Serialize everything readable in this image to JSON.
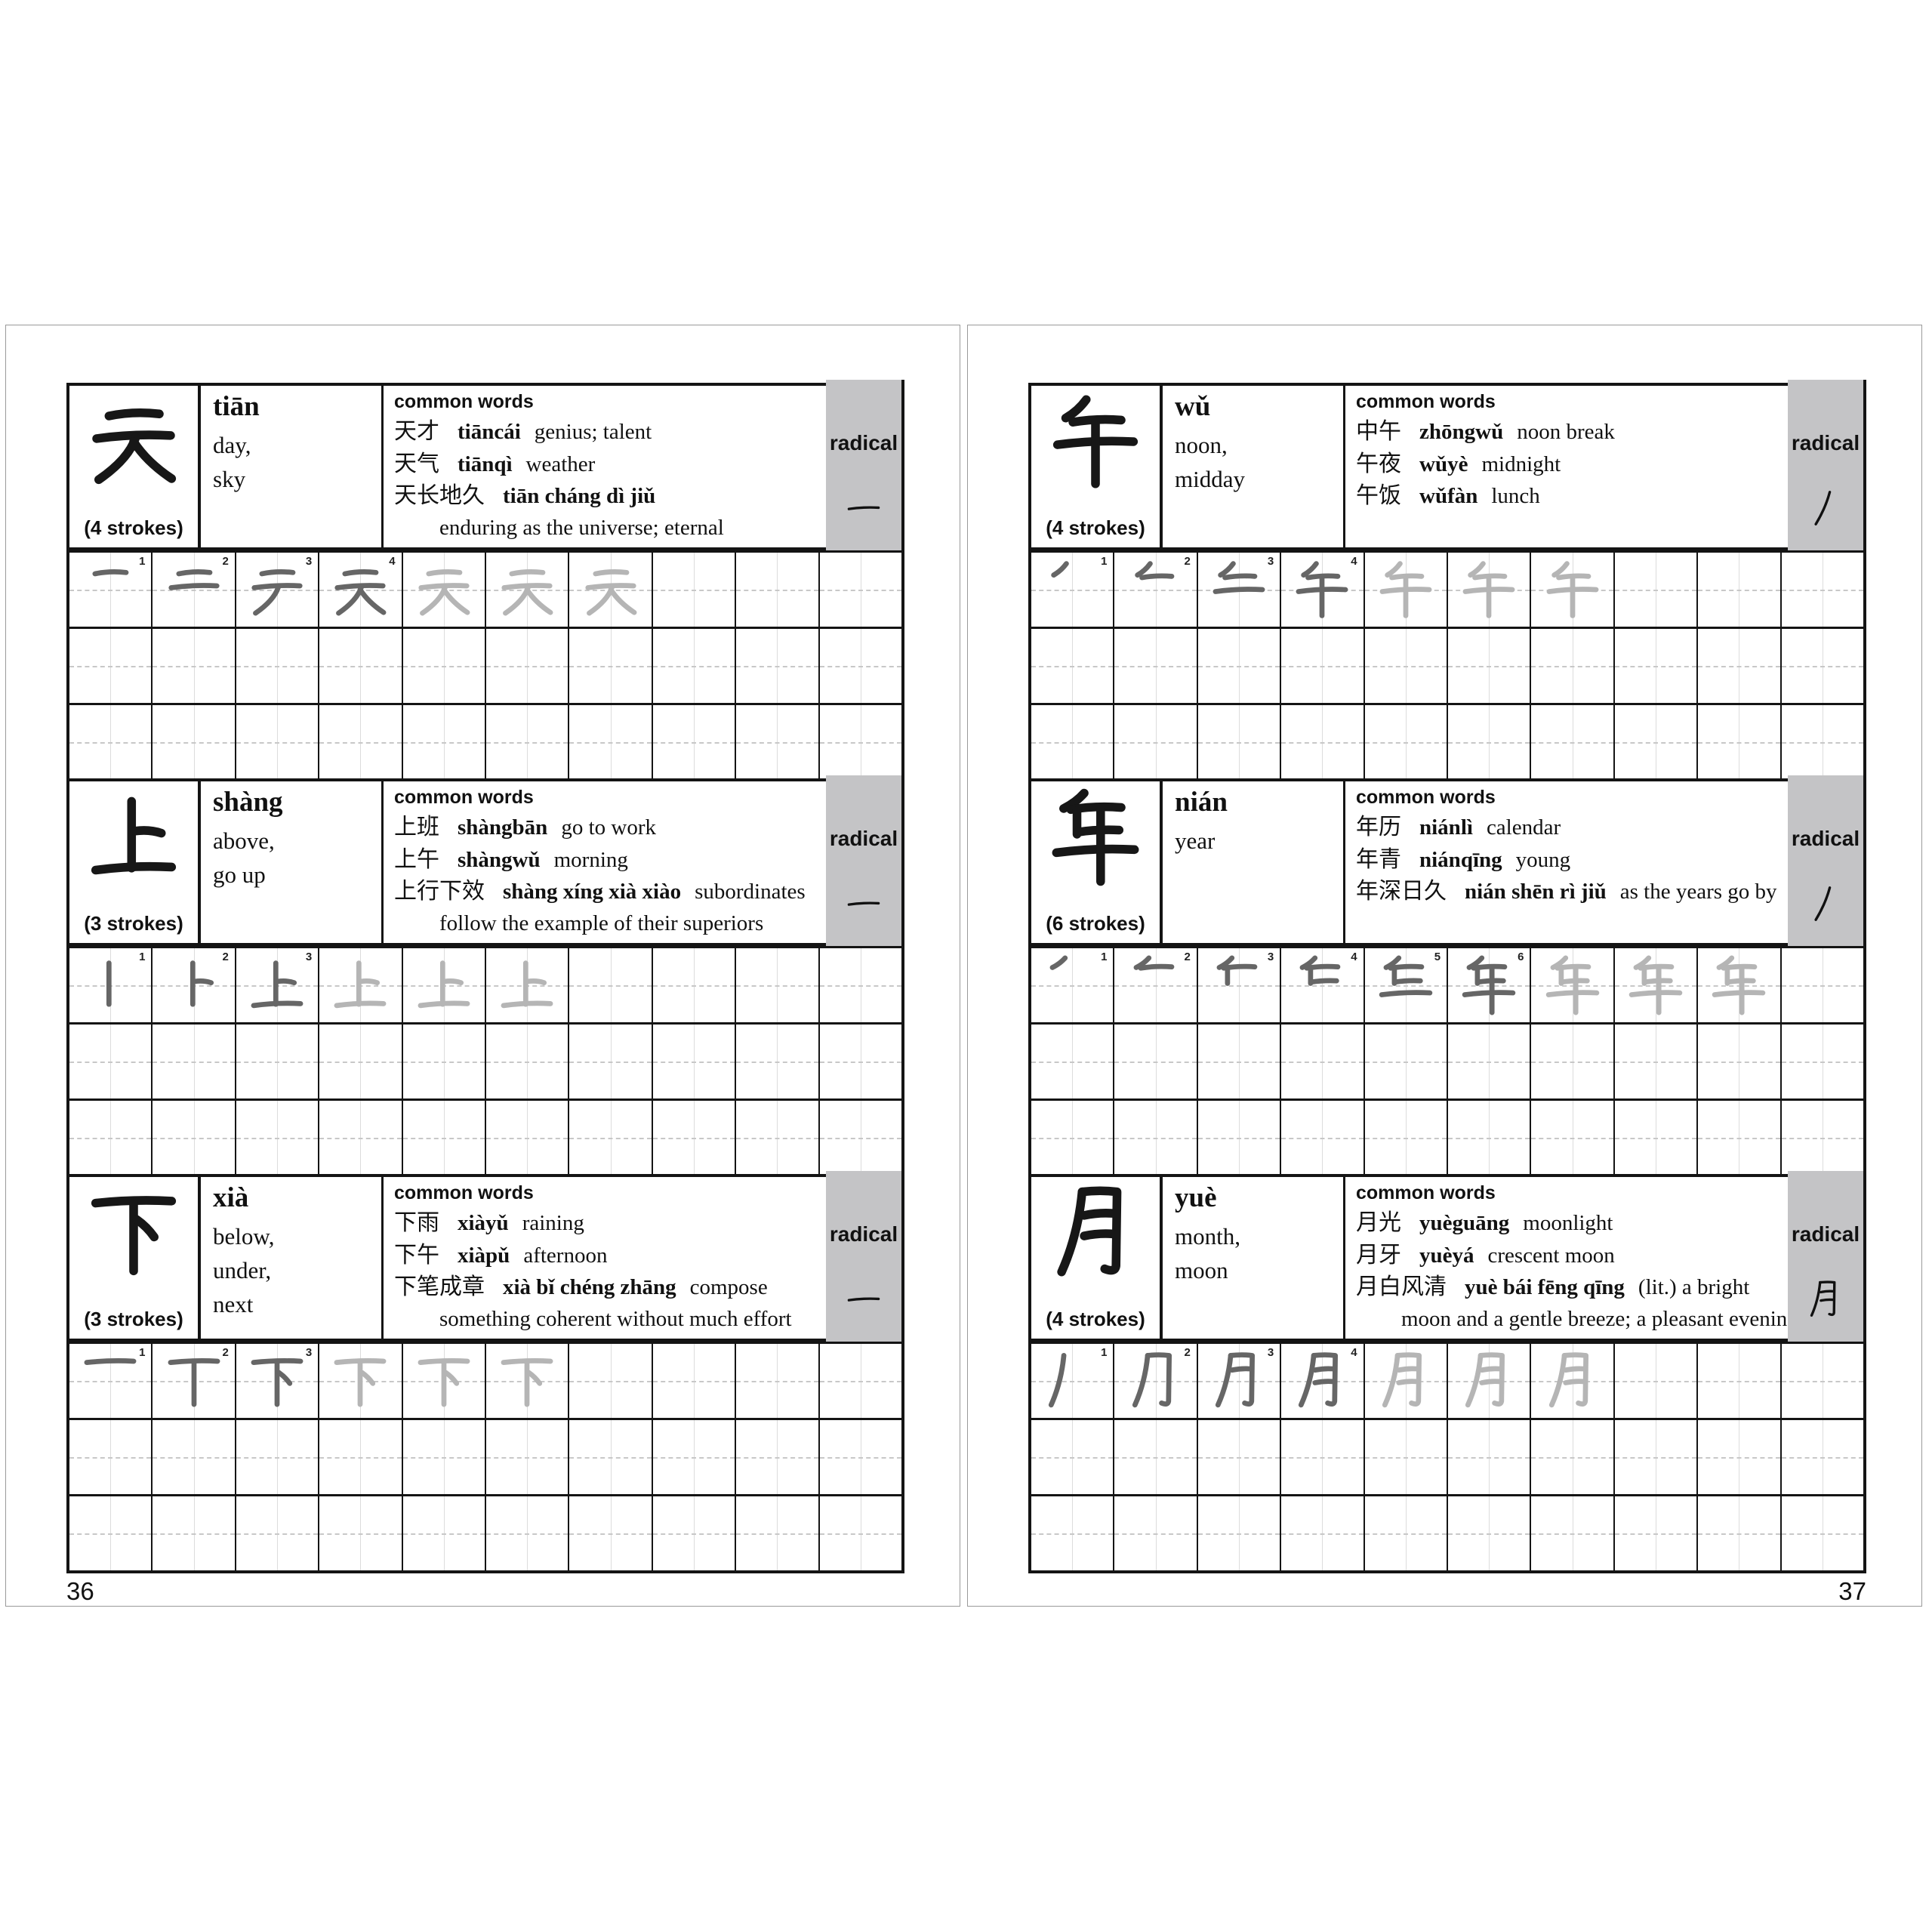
{
  "common_words_label": "common words",
  "radical_label": "radical",
  "pages": [
    {
      "page_number": "36",
      "blocks": [
        {
          "character": "天",
          "pinyin": "tiān",
          "meaning": "day,\nsky",
          "strokes_label": "(4 strokes)",
          "radical": "一",
          "words": [
            {
              "hanzi": "天才",
              "pinyin": "tiāncái",
              "gloss": "genius; talent"
            },
            {
              "hanzi": "天气",
              "pinyin": "tiānqì",
              "gloss": "weather"
            },
            {
              "hanzi": "天长地久",
              "pinyin": "tiān cháng dì jiǔ",
              "gloss": "",
              "cont": "enduring as the universe; eternal"
            }
          ],
          "grid": {
            "stroke_steps": 4,
            "faded_repeats": 3,
            "columns": 10,
            "rows": 3
          }
        },
        {
          "character": "上",
          "pinyin": "shàng",
          "meaning": "above,\ngo up",
          "strokes_label": "(3 strokes)",
          "radical": "一",
          "words": [
            {
              "hanzi": "上班",
              "pinyin": "shàngbān",
              "gloss": "go to work"
            },
            {
              "hanzi": "上午",
              "pinyin": "shàngwǔ",
              "gloss": "morning"
            },
            {
              "hanzi": "上行下效",
              "pinyin": "shàng xíng xià xiào",
              "gloss": "subordinates",
              "cont": "follow the example of their superiors"
            }
          ],
          "grid": {
            "stroke_steps": 3,
            "faded_repeats": 3,
            "columns": 10,
            "rows": 3
          }
        },
        {
          "character": "下",
          "pinyin": "xià",
          "meaning": "below,\nunder,\nnext",
          "strokes_label": "(3 strokes)",
          "radical": "一",
          "words": [
            {
              "hanzi": "下雨",
              "pinyin": "xiàyǔ",
              "gloss": "raining"
            },
            {
              "hanzi": "下午",
              "pinyin": "xiàpǔ",
              "gloss": "afternoon"
            },
            {
              "hanzi": "下笔成章",
              "pinyin": "xià bǐ chéng zhāng",
              "gloss": "compose",
              "cont": "something coherent without much effort"
            }
          ],
          "grid": {
            "stroke_steps": 3,
            "faded_repeats": 3,
            "columns": 10,
            "rows": 3
          }
        }
      ]
    },
    {
      "page_number": "37",
      "blocks": [
        {
          "character": "午",
          "pinyin": "wǔ",
          "meaning": "noon,\nmidday",
          "strokes_label": "(4 strokes)",
          "radical": "丿",
          "words": [
            {
              "hanzi": "中午",
              "pinyin": "zhōngwǔ",
              "gloss": "noon break"
            },
            {
              "hanzi": "午夜",
              "pinyin": "wǔyè",
              "gloss": "midnight"
            },
            {
              "hanzi": "午饭",
              "pinyin": "wǔfàn",
              "gloss": "lunch"
            }
          ],
          "grid": {
            "stroke_steps": 4,
            "faded_repeats": 3,
            "columns": 10,
            "rows": 3
          }
        },
        {
          "character": "年",
          "pinyin": "nián",
          "meaning": "year",
          "strokes_label": "(6 strokes)",
          "radical": "丿",
          "words": [
            {
              "hanzi": "年历",
              "pinyin": "niánlì",
              "gloss": "calendar"
            },
            {
              "hanzi": "年青",
              "pinyin": "niánqīng",
              "gloss": "young"
            },
            {
              "hanzi": "年深日久",
              "pinyin": "nián shēn rì jiǔ",
              "gloss": "as the years go by"
            }
          ],
          "grid": {
            "stroke_steps": 6,
            "faded_repeats": 3,
            "columns": 10,
            "rows": 3
          }
        },
        {
          "character": "月",
          "pinyin": "yuè",
          "meaning": "month,\nmoon",
          "strokes_label": "(4 strokes)",
          "radical": "月",
          "words": [
            {
              "hanzi": "月光",
              "pinyin": "yuèguāng",
              "gloss": "moonlight"
            },
            {
              "hanzi": "月牙",
              "pinyin": "yuèyá",
              "gloss": "crescent moon"
            },
            {
              "hanzi": "月白风清",
              "pinyin": "yuè bái fēng qīng",
              "gloss": "(lit.) a bright",
              "cont": "moon and a gentle breeze; a pleasant evening"
            }
          ],
          "grid": {
            "stroke_steps": 4,
            "faded_repeats": 3,
            "columns": 10,
            "rows": 3
          }
        }
      ]
    }
  ]
}
